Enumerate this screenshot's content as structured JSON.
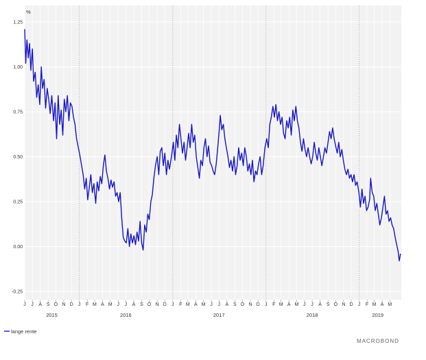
{
  "chart_data": {
    "type": "line",
    "ylabel": "%",
    "ylim": [
      -0.25,
      1.25
    ],
    "yticks": [
      "1.25",
      "1.00",
      "0.75",
      "0.50",
      "0.25",
      "0.00",
      "-0.25"
    ],
    "ytick_values": [
      1.25,
      1.0,
      0.75,
      0.5,
      0.25,
      0.0,
      -0.25
    ],
    "x_range": [
      "2015-06-01",
      "2019-06-15"
    ],
    "month_labels": [
      "J",
      "J",
      "A",
      "S",
      "O",
      "N",
      "D",
      "J",
      "F",
      "M",
      "A",
      "M",
      "J",
      "J",
      "A",
      "S",
      "O",
      "N",
      "D",
      "J",
      "F",
      "M",
      "A",
      "M",
      "J",
      "J",
      "A",
      "S",
      "O",
      "N",
      "D",
      "J",
      "F",
      "M",
      "A",
      "M",
      "J",
      "J",
      "A",
      "S",
      "O",
      "N",
      "D",
      "J",
      "F",
      "M",
      "A",
      "M"
    ],
    "month_dates": [
      "2015-06-01",
      "2015-07-01",
      "2015-08-01",
      "2015-09-01",
      "2015-10-01",
      "2015-11-01",
      "2015-12-01",
      "2016-01-01",
      "2016-02-01",
      "2016-03-01",
      "2016-04-01",
      "2016-05-01",
      "2016-06-01",
      "2016-07-01",
      "2016-08-01",
      "2016-09-01",
      "2016-10-01",
      "2016-11-01",
      "2016-12-01",
      "2017-01-01",
      "2017-02-01",
      "2017-03-01",
      "2017-04-01",
      "2017-05-01",
      "2017-06-01",
      "2017-07-01",
      "2017-08-01",
      "2017-09-01",
      "2017-10-01",
      "2017-11-01",
      "2017-12-01",
      "2018-01-01",
      "2018-02-01",
      "2018-03-01",
      "2018-04-01",
      "2018-05-01",
      "2018-06-01",
      "2018-07-01",
      "2018-08-01",
      "2018-09-01",
      "2018-10-01",
      "2018-11-01",
      "2018-12-01",
      "2019-01-01",
      "2019-02-01",
      "2019-03-01",
      "2019-04-01",
      "2019-05-01"
    ],
    "year_labels": [
      "2015",
      "2016",
      "2017",
      "2018",
      "2019"
    ],
    "year_label_dates": [
      "2015-09-15",
      "2016-07-01",
      "2017-07-01",
      "2018-07-01",
      "2019-03-15"
    ],
    "year_boundaries": [
      "2016-01-01",
      "2017-01-01",
      "2018-01-01",
      "2019-01-01"
    ],
    "grid": true,
    "legend_position": "bottom-left",
    "series": [
      {
        "name": "lange rente",
        "color": "#1414c8",
        "points": [
          [
            "2015-06-01",
            1.21
          ],
          [
            "2015-06-05",
            1.02
          ],
          [
            "2015-06-10",
            1.15
          ],
          [
            "2015-06-15",
            1.05
          ],
          [
            "2015-06-20",
            1.13
          ],
          [
            "2015-06-25",
            0.98
          ],
          [
            "2015-07-01",
            1.1
          ],
          [
            "2015-07-06",
            0.92
          ],
          [
            "2015-07-12",
            0.97
          ],
          [
            "2015-07-18",
            0.83
          ],
          [
            "2015-07-24",
            0.9
          ],
          [
            "2015-07-30",
            0.79
          ],
          [
            "2015-08-05",
            1.0
          ],
          [
            "2015-08-10",
            0.88
          ],
          [
            "2015-08-16",
            0.93
          ],
          [
            "2015-08-22",
            0.77
          ],
          [
            "2015-08-28",
            0.88
          ],
          [
            "2015-09-03",
            0.82
          ],
          [
            "2015-09-09",
            0.74
          ],
          [
            "2015-09-15",
            0.84
          ],
          [
            "2015-09-22",
            0.7
          ],
          [
            "2015-09-28",
            0.8
          ],
          [
            "2015-10-04",
            0.6
          ],
          [
            "2015-10-10",
            0.84
          ],
          [
            "2015-10-16",
            0.68
          ],
          [
            "2015-10-22",
            0.76
          ],
          [
            "2015-10-28",
            0.62
          ],
          [
            "2015-11-03",
            0.82
          ],
          [
            "2015-11-09",
            0.75
          ],
          [
            "2015-11-15",
            0.84
          ],
          [
            "2015-11-21",
            0.7
          ],
          [
            "2015-11-27",
            0.8
          ],
          [
            "2015-12-03",
            0.78
          ],
          [
            "2015-12-09",
            0.72
          ],
          [
            "2015-12-15",
            0.68
          ],
          [
            "2015-12-21",
            0.6
          ],
          [
            "2015-12-28",
            0.55
          ],
          [
            "2016-01-04",
            0.5
          ],
          [
            "2016-01-10",
            0.45
          ],
          [
            "2016-01-16",
            0.4
          ],
          [
            "2016-01-22",
            0.32
          ],
          [
            "2016-01-28",
            0.38
          ],
          [
            "2016-02-03",
            0.26
          ],
          [
            "2016-02-09",
            0.33
          ],
          [
            "2016-02-15",
            0.4
          ],
          [
            "2016-02-21",
            0.3
          ],
          [
            "2016-02-27",
            0.35
          ],
          [
            "2016-03-05",
            0.24
          ],
          [
            "2016-03-11",
            0.36
          ],
          [
            "2016-03-17",
            0.31
          ],
          [
            "2016-03-23",
            0.39
          ],
          [
            "2016-03-29",
            0.35
          ],
          [
            "2016-04-04",
            0.45
          ],
          [
            "2016-04-10",
            0.51
          ],
          [
            "2016-04-16",
            0.42
          ],
          [
            "2016-04-22",
            0.38
          ],
          [
            "2016-04-28",
            0.32
          ],
          [
            "2016-05-04",
            0.37
          ],
          [
            "2016-05-10",
            0.33
          ],
          [
            "2016-05-16",
            0.36
          ],
          [
            "2016-05-22",
            0.28
          ],
          [
            "2016-05-28",
            0.3
          ],
          [
            "2016-06-03",
            0.25
          ],
          [
            "2016-06-09",
            0.3
          ],
          [
            "2016-06-15",
            0.16
          ],
          [
            "2016-06-21",
            0.05
          ],
          [
            "2016-06-27",
            0.03
          ],
          [
            "2016-07-03",
            0.02
          ],
          [
            "2016-07-09",
            0.1
          ],
          [
            "2016-07-15",
            0.0
          ],
          [
            "2016-07-21",
            0.07
          ],
          [
            "2016-07-27",
            0.02
          ],
          [
            "2016-08-02",
            0.06
          ],
          [
            "2016-08-08",
            0.01
          ],
          [
            "2016-08-14",
            0.08
          ],
          [
            "2016-08-20",
            0.03
          ],
          [
            "2016-08-26",
            0.14
          ],
          [
            "2016-09-01",
            0.02
          ],
          [
            "2016-09-07",
            -0.02
          ],
          [
            "2016-09-13",
            0.12
          ],
          [
            "2016-09-19",
            0.08
          ],
          [
            "2016-09-25",
            0.18
          ],
          [
            "2016-10-01",
            0.15
          ],
          [
            "2016-10-07",
            0.25
          ],
          [
            "2016-10-13",
            0.29
          ],
          [
            "2016-10-19",
            0.38
          ],
          [
            "2016-10-25",
            0.45
          ],
          [
            "2016-11-01",
            0.5
          ],
          [
            "2016-11-07",
            0.4
          ],
          [
            "2016-11-13",
            0.53
          ],
          [
            "2016-11-19",
            0.55
          ],
          [
            "2016-11-25",
            0.45
          ],
          [
            "2016-12-01",
            0.52
          ],
          [
            "2016-12-07",
            0.4
          ],
          [
            "2016-12-13",
            0.48
          ],
          [
            "2016-12-19",
            0.43
          ],
          [
            "2016-12-27",
            0.5
          ],
          [
            "2017-01-03",
            0.58
          ],
          [
            "2017-01-09",
            0.48
          ],
          [
            "2017-01-15",
            0.62
          ],
          [
            "2017-01-21",
            0.55
          ],
          [
            "2017-01-27",
            0.68
          ],
          [
            "2017-02-02",
            0.6
          ],
          [
            "2017-02-08",
            0.52
          ],
          [
            "2017-02-14",
            0.58
          ],
          [
            "2017-02-20",
            0.48
          ],
          [
            "2017-02-26",
            0.55
          ],
          [
            "2017-03-04",
            0.63
          ],
          [
            "2017-03-10",
            0.55
          ],
          [
            "2017-03-16",
            0.68
          ],
          [
            "2017-03-22",
            0.58
          ],
          [
            "2017-03-28",
            0.62
          ],
          [
            "2017-04-03",
            0.5
          ],
          [
            "2017-04-09",
            0.44
          ],
          [
            "2017-04-15",
            0.38
          ],
          [
            "2017-04-21",
            0.48
          ],
          [
            "2017-04-27",
            0.45
          ],
          [
            "2017-05-03",
            0.55
          ],
          [
            "2017-05-09",
            0.6
          ],
          [
            "2017-05-15",
            0.5
          ],
          [
            "2017-05-21",
            0.56
          ],
          [
            "2017-05-27",
            0.47
          ],
          [
            "2017-06-02",
            0.45
          ],
          [
            "2017-06-08",
            0.42
          ],
          [
            "2017-06-14",
            0.4
          ],
          [
            "2017-06-20",
            0.46
          ],
          [
            "2017-06-26",
            0.55
          ],
          [
            "2017-07-02",
            0.65
          ],
          [
            "2017-07-06",
            0.73
          ],
          [
            "2017-07-12",
            0.65
          ],
          [
            "2017-07-18",
            0.68
          ],
          [
            "2017-07-24",
            0.6
          ],
          [
            "2017-07-30",
            0.55
          ],
          [
            "2017-08-05",
            0.5
          ],
          [
            "2017-08-11",
            0.44
          ],
          [
            "2017-08-17",
            0.48
          ],
          [
            "2017-08-23",
            0.42
          ],
          [
            "2017-08-29",
            0.5
          ],
          [
            "2017-09-04",
            0.4
          ],
          [
            "2017-09-10",
            0.45
          ],
          [
            "2017-09-16",
            0.55
          ],
          [
            "2017-09-22",
            0.48
          ],
          [
            "2017-09-28",
            0.52
          ],
          [
            "2017-10-04",
            0.45
          ],
          [
            "2017-10-10",
            0.55
          ],
          [
            "2017-10-16",
            0.5
          ],
          [
            "2017-10-22",
            0.42
          ],
          [
            "2017-10-28",
            0.46
          ],
          [
            "2017-11-03",
            0.4
          ],
          [
            "2017-11-09",
            0.48
          ],
          [
            "2017-11-15",
            0.36
          ],
          [
            "2017-11-21",
            0.42
          ],
          [
            "2017-11-27",
            0.4
          ],
          [
            "2017-12-03",
            0.46
          ],
          [
            "2017-12-09",
            0.5
          ],
          [
            "2017-12-15",
            0.4
          ],
          [
            "2017-12-21",
            0.45
          ],
          [
            "2017-12-28",
            0.55
          ],
          [
            "2018-01-04",
            0.6
          ],
          [
            "2018-01-10",
            0.55
          ],
          [
            "2018-01-16",
            0.68
          ],
          [
            "2018-01-22",
            0.72
          ],
          [
            "2018-01-28",
            0.78
          ],
          [
            "2018-02-03",
            0.72
          ],
          [
            "2018-02-09",
            0.79
          ],
          [
            "2018-02-15",
            0.7
          ],
          [
            "2018-02-21",
            0.75
          ],
          [
            "2018-02-27",
            0.68
          ],
          [
            "2018-03-05",
            0.72
          ],
          [
            "2018-03-11",
            0.63
          ],
          [
            "2018-03-17",
            0.6
          ],
          [
            "2018-03-23",
            0.7
          ],
          [
            "2018-03-29",
            0.66
          ],
          [
            "2018-04-04",
            0.72
          ],
          [
            "2018-04-10",
            0.62
          ],
          [
            "2018-04-16",
            0.76
          ],
          [
            "2018-04-22",
            0.7
          ],
          [
            "2018-04-28",
            0.78
          ],
          [
            "2018-05-04",
            0.7
          ],
          [
            "2018-05-10",
            0.66
          ],
          [
            "2018-05-16",
            0.58
          ],
          [
            "2018-05-22",
            0.53
          ],
          [
            "2018-05-28",
            0.6
          ],
          [
            "2018-06-03",
            0.54
          ],
          [
            "2018-06-09",
            0.5
          ],
          [
            "2018-06-15",
            0.55
          ],
          [
            "2018-06-21",
            0.5
          ],
          [
            "2018-06-27",
            0.46
          ],
          [
            "2018-07-03",
            0.5
          ],
          [
            "2018-07-09",
            0.58
          ],
          [
            "2018-07-15",
            0.52
          ],
          [
            "2018-07-21",
            0.48
          ],
          [
            "2018-07-27",
            0.55
          ],
          [
            "2018-08-02",
            0.5
          ],
          [
            "2018-08-08",
            0.45
          ],
          [
            "2018-08-14",
            0.5
          ],
          [
            "2018-08-20",
            0.55
          ],
          [
            "2018-08-26",
            0.52
          ],
          [
            "2018-09-01",
            0.58
          ],
          [
            "2018-09-07",
            0.64
          ],
          [
            "2018-09-13",
            0.6
          ],
          [
            "2018-09-19",
            0.66
          ],
          [
            "2018-09-25",
            0.6
          ],
          [
            "2018-10-01",
            0.56
          ],
          [
            "2018-10-07",
            0.52
          ],
          [
            "2018-10-13",
            0.58
          ],
          [
            "2018-10-19",
            0.5
          ],
          [
            "2018-10-25",
            0.54
          ],
          [
            "2018-10-31",
            0.48
          ],
          [
            "2018-11-06",
            0.43
          ],
          [
            "2018-11-12",
            0.4
          ],
          [
            "2018-11-18",
            0.43
          ],
          [
            "2018-11-24",
            0.38
          ],
          [
            "2018-11-30",
            0.4
          ],
          [
            "2018-12-06",
            0.36
          ],
          [
            "2018-12-12",
            0.4
          ],
          [
            "2018-12-18",
            0.34
          ],
          [
            "2018-12-24",
            0.36
          ],
          [
            "2018-12-31",
            0.3
          ],
          [
            "2019-01-06",
            0.22
          ],
          [
            "2019-01-12",
            0.32
          ],
          [
            "2019-01-18",
            0.24
          ],
          [
            "2019-01-24",
            0.28
          ],
          [
            "2019-01-30",
            0.2
          ],
          [
            "2019-02-05",
            0.22
          ],
          [
            "2019-02-11",
            0.26
          ],
          [
            "2019-02-15",
            0.38
          ],
          [
            "2019-02-21",
            0.3
          ],
          [
            "2019-02-27",
            0.28
          ],
          [
            "2019-03-05",
            0.2
          ],
          [
            "2019-03-11",
            0.24
          ],
          [
            "2019-03-17",
            0.18
          ],
          [
            "2019-03-23",
            0.12
          ],
          [
            "2019-03-29",
            0.16
          ],
          [
            "2019-04-04",
            0.22
          ],
          [
            "2019-04-10",
            0.28
          ],
          [
            "2019-04-16",
            0.18
          ],
          [
            "2019-04-22",
            0.2
          ],
          [
            "2019-04-28",
            0.14
          ],
          [
            "2019-05-04",
            0.16
          ],
          [
            "2019-05-10",
            0.12
          ],
          [
            "2019-05-16",
            0.1
          ],
          [
            "2019-05-22",
            0.05
          ],
          [
            "2019-05-28",
            0.01
          ],
          [
            "2019-06-03",
            -0.03
          ],
          [
            "2019-06-07",
            -0.08
          ],
          [
            "2019-06-12",
            -0.04
          ]
        ]
      }
    ]
  },
  "branding": {
    "text": "MACROBOND"
  }
}
